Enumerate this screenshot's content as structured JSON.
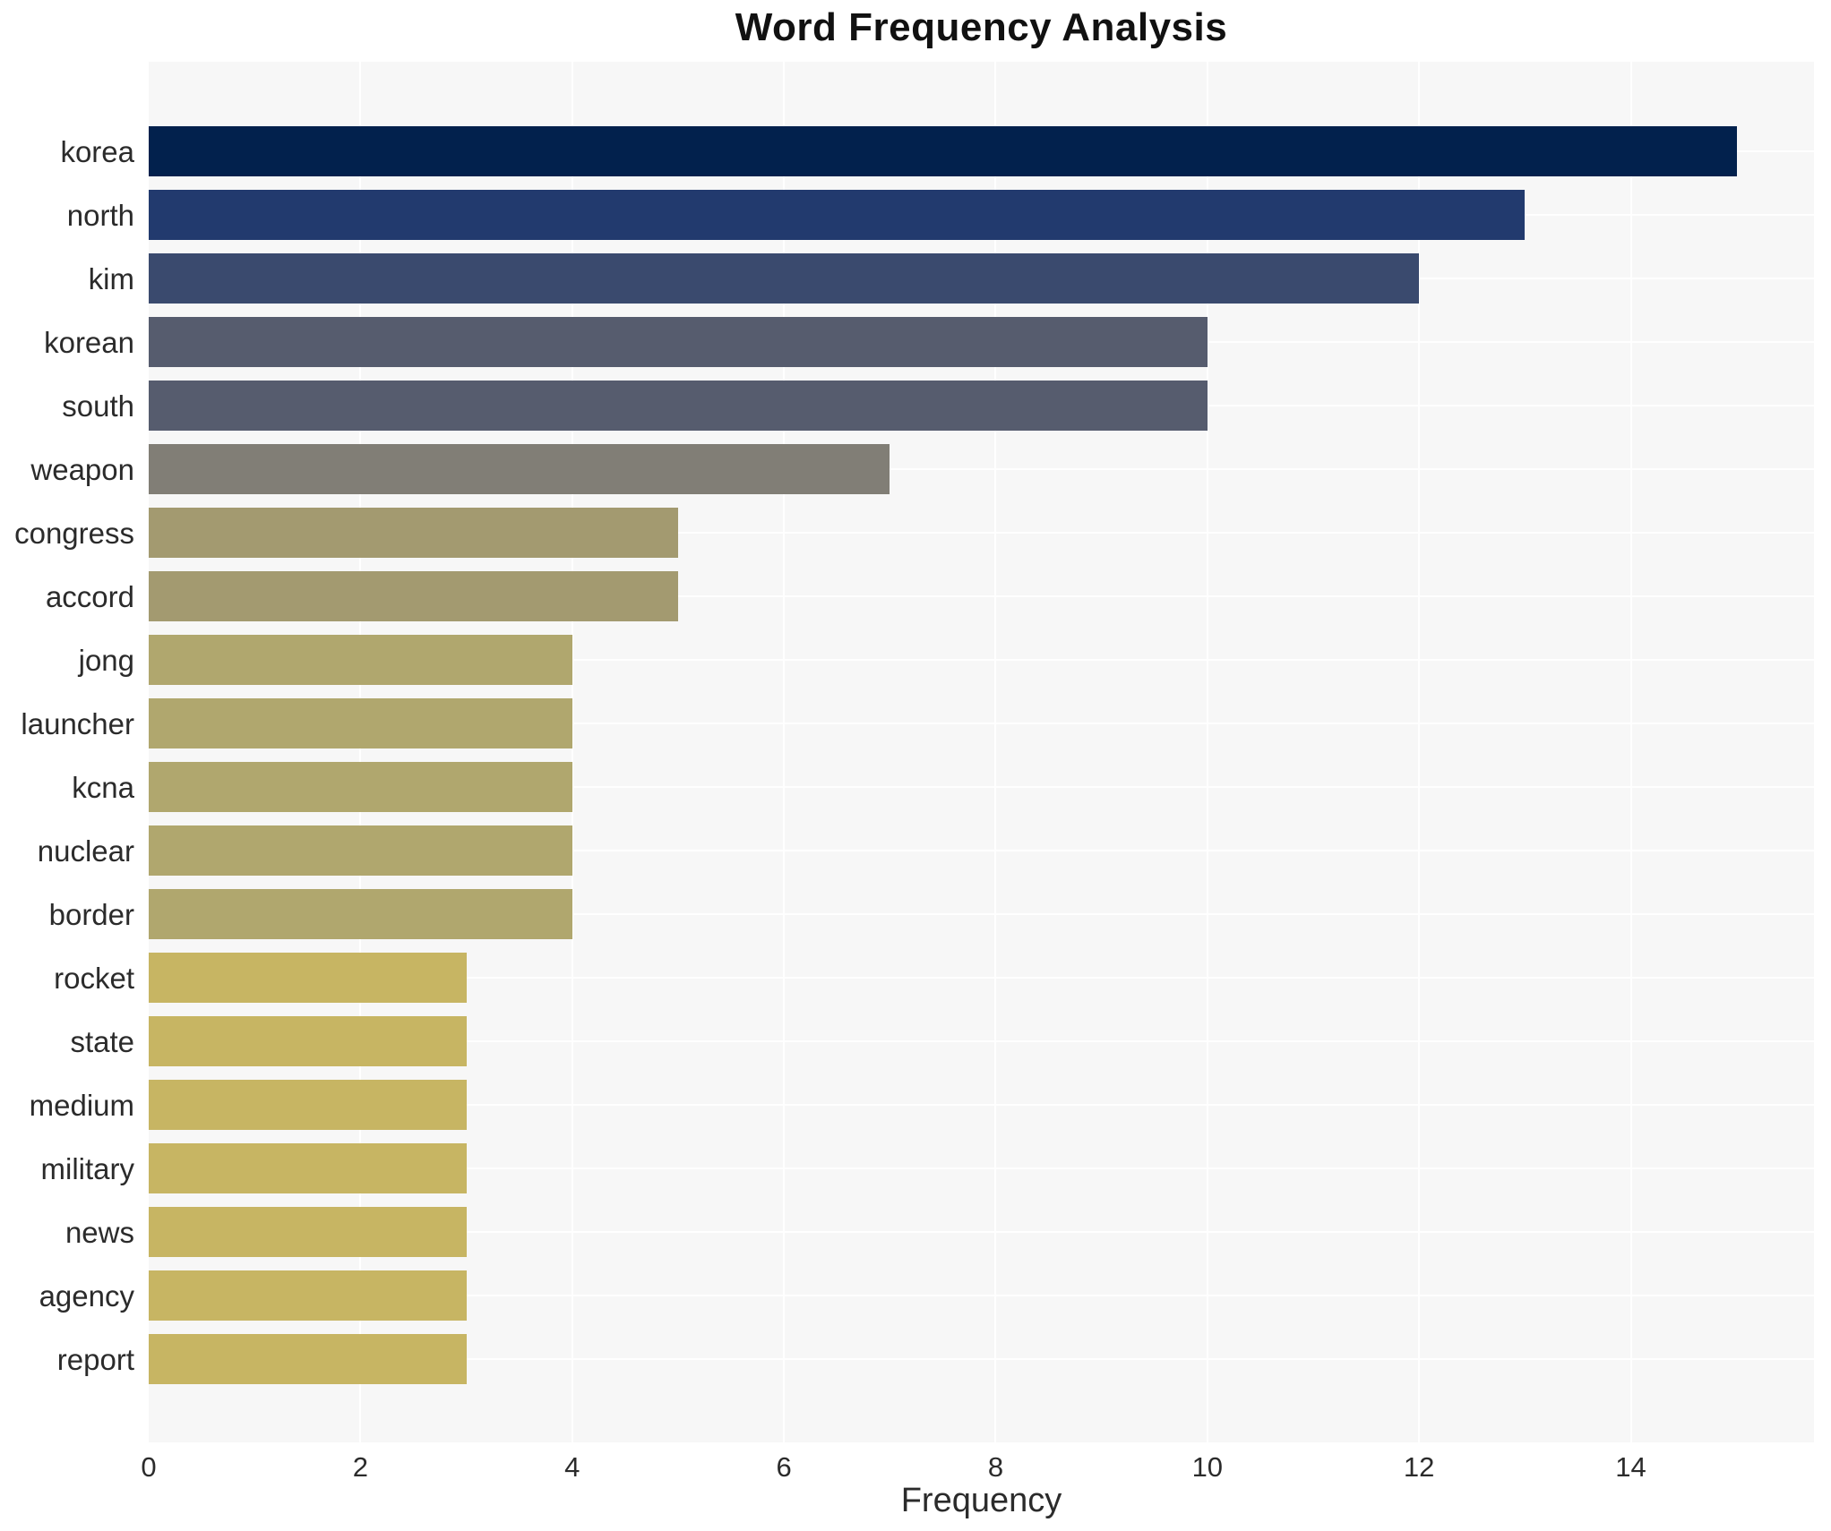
{
  "chart_data": {
    "type": "bar",
    "orientation": "horizontal",
    "title": "Word Frequency Analysis",
    "xlabel": "Frequency",
    "ylabel": "",
    "categories": [
      "korea",
      "north",
      "kim",
      "korean",
      "south",
      "weapon",
      "congress",
      "accord",
      "jong",
      "launcher",
      "kcna",
      "nuclear",
      "border",
      "rocket",
      "state",
      "medium",
      "military",
      "news",
      "agency",
      "report"
    ],
    "values": [
      15,
      13,
      12,
      10,
      10,
      7,
      5,
      5,
      4,
      4,
      4,
      4,
      4,
      3,
      3,
      3,
      3,
      3,
      3,
      3
    ],
    "bar_colors": [
      "#02214d",
      "#223a6e",
      "#3a4a6e",
      "#565c6e",
      "#565c6e",
      "#817e76",
      "#a39a70",
      "#a39a70",
      "#b0a76e",
      "#b0a76e",
      "#b0a76e",
      "#b0a76e",
      "#b0a76e",
      "#c7b563",
      "#c7b563",
      "#c7b563",
      "#c7b563",
      "#c7b563",
      "#c7b563",
      "#c7b563"
    ],
    "xticks": [
      "0",
      "2",
      "4",
      "6",
      "8",
      "10",
      "12",
      "14"
    ],
    "xtick_values": [
      0,
      2,
      4,
      6,
      8,
      10,
      12,
      14
    ],
    "xlim": [
      0,
      15.73
    ],
    "grid": true,
    "legend": false,
    "plot_background": "#f7f7f7",
    "grid_color": "#ffffff",
    "text_color": "#2b2b2b"
  }
}
